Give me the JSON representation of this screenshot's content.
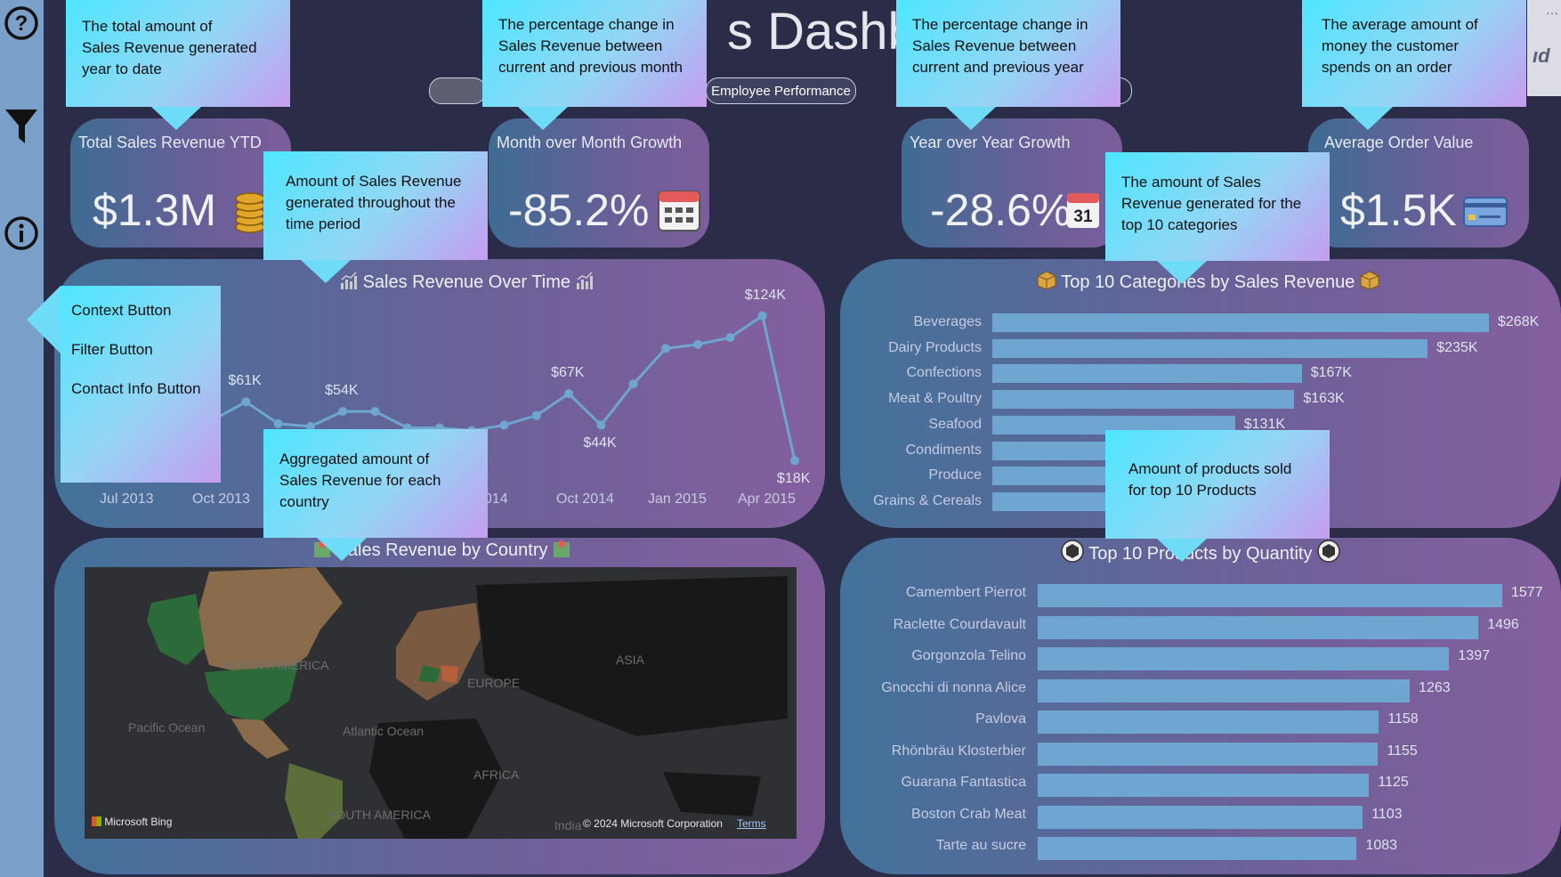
{
  "header": {
    "title": "s Dashbo",
    "nav_button": "Employee Performance",
    "corner_text": "ıd"
  },
  "kpis": [
    {
      "label": "Total Sales Revenue YTD",
      "value": "$1.3M",
      "icon": "coins-icon"
    },
    {
      "label": "Month over Month Growth",
      "value": "-85.2%",
      "icon": "calendar-icon"
    },
    {
      "label": "Year over Year Growth",
      "value": "-28.6%",
      "icon": "calendar-31-icon",
      "icon_day": "31"
    },
    {
      "label": "Average Order Value",
      "value": "$1.5K",
      "icon": "credit-card-icon"
    }
  ],
  "tooltips": {
    "ytd": "The total amount of\nSales Revenue generated\nyear to date",
    "mom": "The percentage change in\nSales Revenue between\ncurrent and previous month",
    "yoy": "The percentage change in\nSales Revenue between\ncurrent and previous year",
    "aov": "The average amount of\nmoney the customer\nspends on an order",
    "over_time": "Amount of Sales Revenue\ngenerated throughout the\ntime period",
    "categories": "The amount of Sales\nRevenue generated for the\ntop 10 categories",
    "country": "Aggregated amount of\nSales Revenue for each\ncountry",
    "products": "Amount of products sold\nfor top 10 Products",
    "side_buttons": [
      "Context Button",
      "Filter Button",
      "Contact Info Button"
    ]
  },
  "sidebar": {
    "icons": [
      "help-icon",
      "filter-icon",
      "info-icon"
    ]
  },
  "line_chart": {
    "title": "Sales Revenue Over Time",
    "icon": "chart-icon"
  },
  "categories_chart": {
    "title": "Top 10 Categories by Sales Revenue",
    "icon": "box-icon"
  },
  "country_chart": {
    "title": "Sales Revenue by Country",
    "icon": "map-icon",
    "map_labels": [
      "NORTH AMERICA",
      "EUROPE",
      "ASIA",
      "AFRICA",
      "SOUTH AMERICA",
      "Pacific Ocean",
      "Atlantic Ocean",
      "India"
    ],
    "bing": "Microsoft Bing",
    "copyright": "© 2024 Microsoft Corporation",
    "terms": "Terms"
  },
  "products_chart": {
    "title": "Top 10 Products by Quantity",
    "icon": "cube-icon"
  },
  "chart_data": [
    {
      "type": "line",
      "title": "Sales Revenue Over Time",
      "x_tick_labels": [
        "Jul 2013",
        "Oct 2013",
        "2014",
        "Oct 2014",
        "Jan 2015",
        "Apr 2015"
      ],
      "x": [
        "2013-07",
        "2013-08",
        "2013-09",
        "2013-10",
        "2013-11",
        "2013-12",
        "2014-01",
        "2014-02",
        "2014-03",
        "2014-04",
        "2014-05",
        "2014-06",
        "2014-07",
        "2014-08",
        "2014-09",
        "2014-10",
        "2014-11",
        "2014-12",
        "2015-01",
        "2015-02",
        "2015-03",
        "2015-04",
        "2015-05"
      ],
      "values": [
        22,
        25,
        38,
        40,
        48,
        61,
        45,
        43,
        54,
        54,
        42,
        42,
        40,
        44,
        51,
        67,
        44,
        74,
        100,
        103,
        108,
        124,
        18
      ],
      "point_labels": [
        {
          "index": 5,
          "text": "$61K"
        },
        {
          "index": 8,
          "text": "$54K"
        },
        {
          "index": 15,
          "text": "$67K"
        },
        {
          "index": 16,
          "text": "$44K"
        },
        {
          "index": 21,
          "text": "$124K"
        },
        {
          "index": 22,
          "text": "$18K"
        }
      ],
      "ylim": [
        0,
        140
      ]
    },
    {
      "type": "bar",
      "title": "Top 10 Categories by Sales Revenue",
      "categories": [
        "Beverages",
        "Dairy Products",
        "Confections",
        "Meat & Poultry",
        "Seafood",
        "Condiments",
        "Produce",
        "Grains & Cereals"
      ],
      "values": [
        268,
        235,
        167,
        163,
        131,
        106,
        100,
        96
      ],
      "value_labels": [
        "$268K",
        "$235K",
        "$167K",
        "$163K",
        "$131K",
        "",
        "",
        ""
      ],
      "xlim": [
        0,
        268
      ]
    },
    {
      "type": "bar",
      "title": "Top 10 Products by Quantity",
      "categories": [
        "Camembert Pierrot",
        "Raclette Courdavault",
        "Gorgonzola Telino",
        "Gnocchi di nonna Alice",
        "Pavlova",
        "Rhönbräu Klosterbier",
        "Guarana Fantastica",
        "Boston Crab Meat",
        "Tarte au sucre"
      ],
      "values": [
        1577,
        1496,
        1397,
        1263,
        1158,
        1155,
        1125,
        1103,
        1083
      ],
      "xlim": [
        0,
        1577
      ]
    }
  ]
}
